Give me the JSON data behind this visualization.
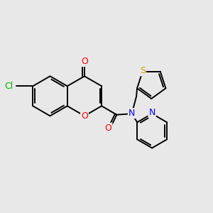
{
  "background_color": "#e8e8e8",
  "bond_color": "#000000",
  "bond_lw": 1.4,
  "atom_colors": {
    "O": "#ff0000",
    "N": "#0000ff",
    "S": "#bbaa00",
    "Cl": "#00aa00",
    "C": "#000000"
  },
  "font_size": 8.5,
  "fig_width": 3.0,
  "fig_height": 3.0,
  "dpi": 100
}
